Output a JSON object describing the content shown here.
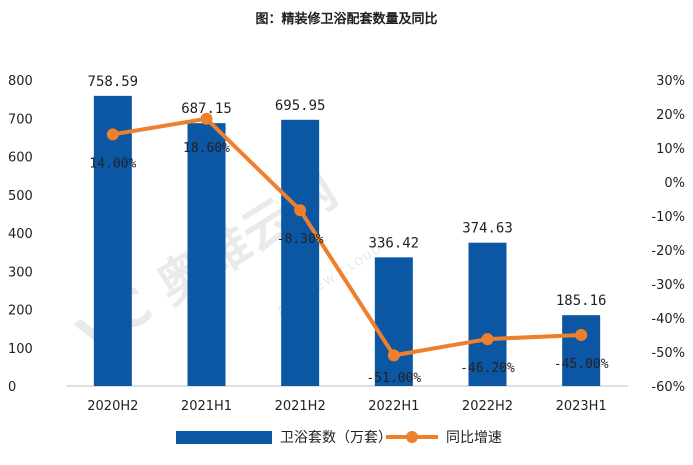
{
  "chart_data": {
    "type": "bar",
    "title": "图：精装修卫浴配套数量及同比",
    "categories": [
      "2020H2",
      "2021H1",
      "2021H2",
      "2022H1",
      "2022H2",
      "2023H1"
    ],
    "series": [
      {
        "name": "卫浴套数（万套）",
        "type": "bar",
        "axis": "left",
        "color": "#0b57a3",
        "values": [
          758.59,
          687.15,
          695.95,
          336.42,
          374.63,
          185.16
        ],
        "labels": [
          "758.59",
          "687.15",
          "695.95",
          "336.42",
          "374.63",
          "185.16"
        ]
      },
      {
        "name": "同比增速",
        "type": "line",
        "axis": "right",
        "color": "#ee7f2d",
        "values": [
          14.0,
          18.6,
          -8.3,
          -51.0,
          -46.2,
          -45.0
        ],
        "labels": [
          "14.00%",
          "18.60%",
          "-8.30%",
          "-51.00%",
          "-46.20%",
          "-45.00%"
        ]
      }
    ],
    "y_left": {
      "ylim": [
        0,
        800
      ],
      "ticks": [
        "0",
        "100",
        "200",
        "300",
        "400",
        "500",
        "600",
        "700",
        "800"
      ]
    },
    "y_right": {
      "ylim": [
        -60,
        30
      ],
      "ticks": [
        "-60%",
        "-50%",
        "-40%",
        "-30%",
        "-20%",
        "-10%",
        "0%",
        "10%",
        "20%",
        "30%"
      ]
    },
    "grid": false,
    "legend_position": "bottom",
    "watermark": {
      "text": "VC 奥维云网",
      "subtext": "ALL VIEW CLOUD"
    }
  }
}
